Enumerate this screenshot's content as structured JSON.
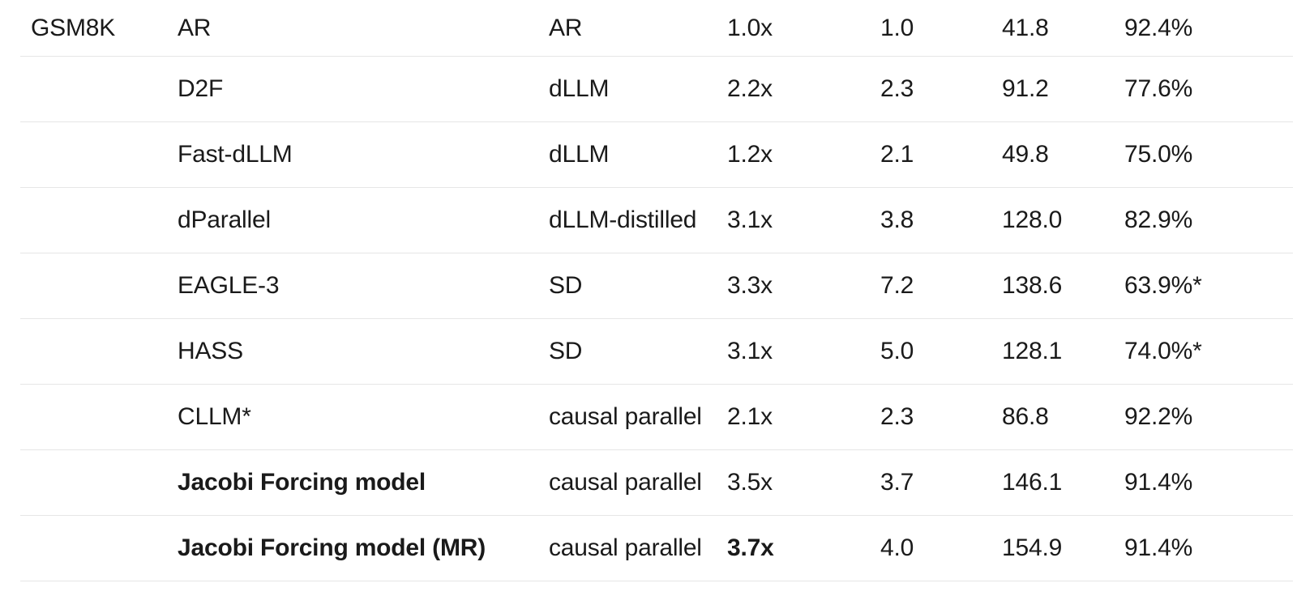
{
  "page": {
    "background_color": "#ffffff",
    "text_color": "#1a1a1a",
    "divider_color": "#e6e6e6"
  },
  "table": {
    "benchmark_label": "GSM8K",
    "rows": [
      {
        "benchmark": "GSM8K",
        "method": "AR",
        "type": "AR",
        "speedup": "1.0x",
        "metric_a": "1.0",
        "metric_b": "41.8",
        "accuracy": "92.4%",
        "method_bold": false,
        "speedup_bold": false
      },
      {
        "benchmark": "",
        "method": "D2F",
        "type": "dLLM",
        "speedup": "2.2x",
        "metric_a": "2.3",
        "metric_b": "91.2",
        "accuracy": "77.6%",
        "method_bold": false,
        "speedup_bold": false
      },
      {
        "benchmark": "",
        "method": "Fast-dLLM",
        "type": "dLLM",
        "speedup": "1.2x",
        "metric_a": "2.1",
        "metric_b": "49.8",
        "accuracy": "75.0%",
        "method_bold": false,
        "speedup_bold": false
      },
      {
        "benchmark": "",
        "method": "dParallel",
        "type": "dLLM-distilled",
        "speedup": "3.1x",
        "metric_a": "3.8",
        "metric_b": "128.0",
        "accuracy": "82.9%",
        "method_bold": false,
        "speedup_bold": false
      },
      {
        "benchmark": "",
        "method": "EAGLE-3",
        "type": "SD",
        "speedup": "3.3x",
        "metric_a": "7.2",
        "metric_b": "138.6",
        "accuracy": "63.9%*",
        "method_bold": false,
        "speedup_bold": false
      },
      {
        "benchmark": "",
        "method": "HASS",
        "type": "SD",
        "speedup": "3.1x",
        "metric_a": "5.0",
        "metric_b": "128.1",
        "accuracy": "74.0%*",
        "method_bold": false,
        "speedup_bold": false
      },
      {
        "benchmark": "",
        "method": "CLLM*",
        "type": "causal parallel",
        "speedup": "2.1x",
        "metric_a": "2.3",
        "metric_b": "86.8",
        "accuracy": "92.2%",
        "method_bold": false,
        "speedup_bold": false
      },
      {
        "benchmark": "",
        "method": "Jacobi Forcing model",
        "type": "causal parallel",
        "speedup": "3.5x",
        "metric_a": "3.7",
        "metric_b": "146.1",
        "accuracy": "91.4%",
        "method_bold": true,
        "speedup_bold": false
      },
      {
        "benchmark": "",
        "method": "Jacobi Forcing model (MR)",
        "type": "causal parallel",
        "speedup": "3.7x",
        "metric_a": "4.0",
        "metric_b": "154.9",
        "accuracy": "91.4%",
        "method_bold": true,
        "speedup_bold": true
      }
    ]
  }
}
